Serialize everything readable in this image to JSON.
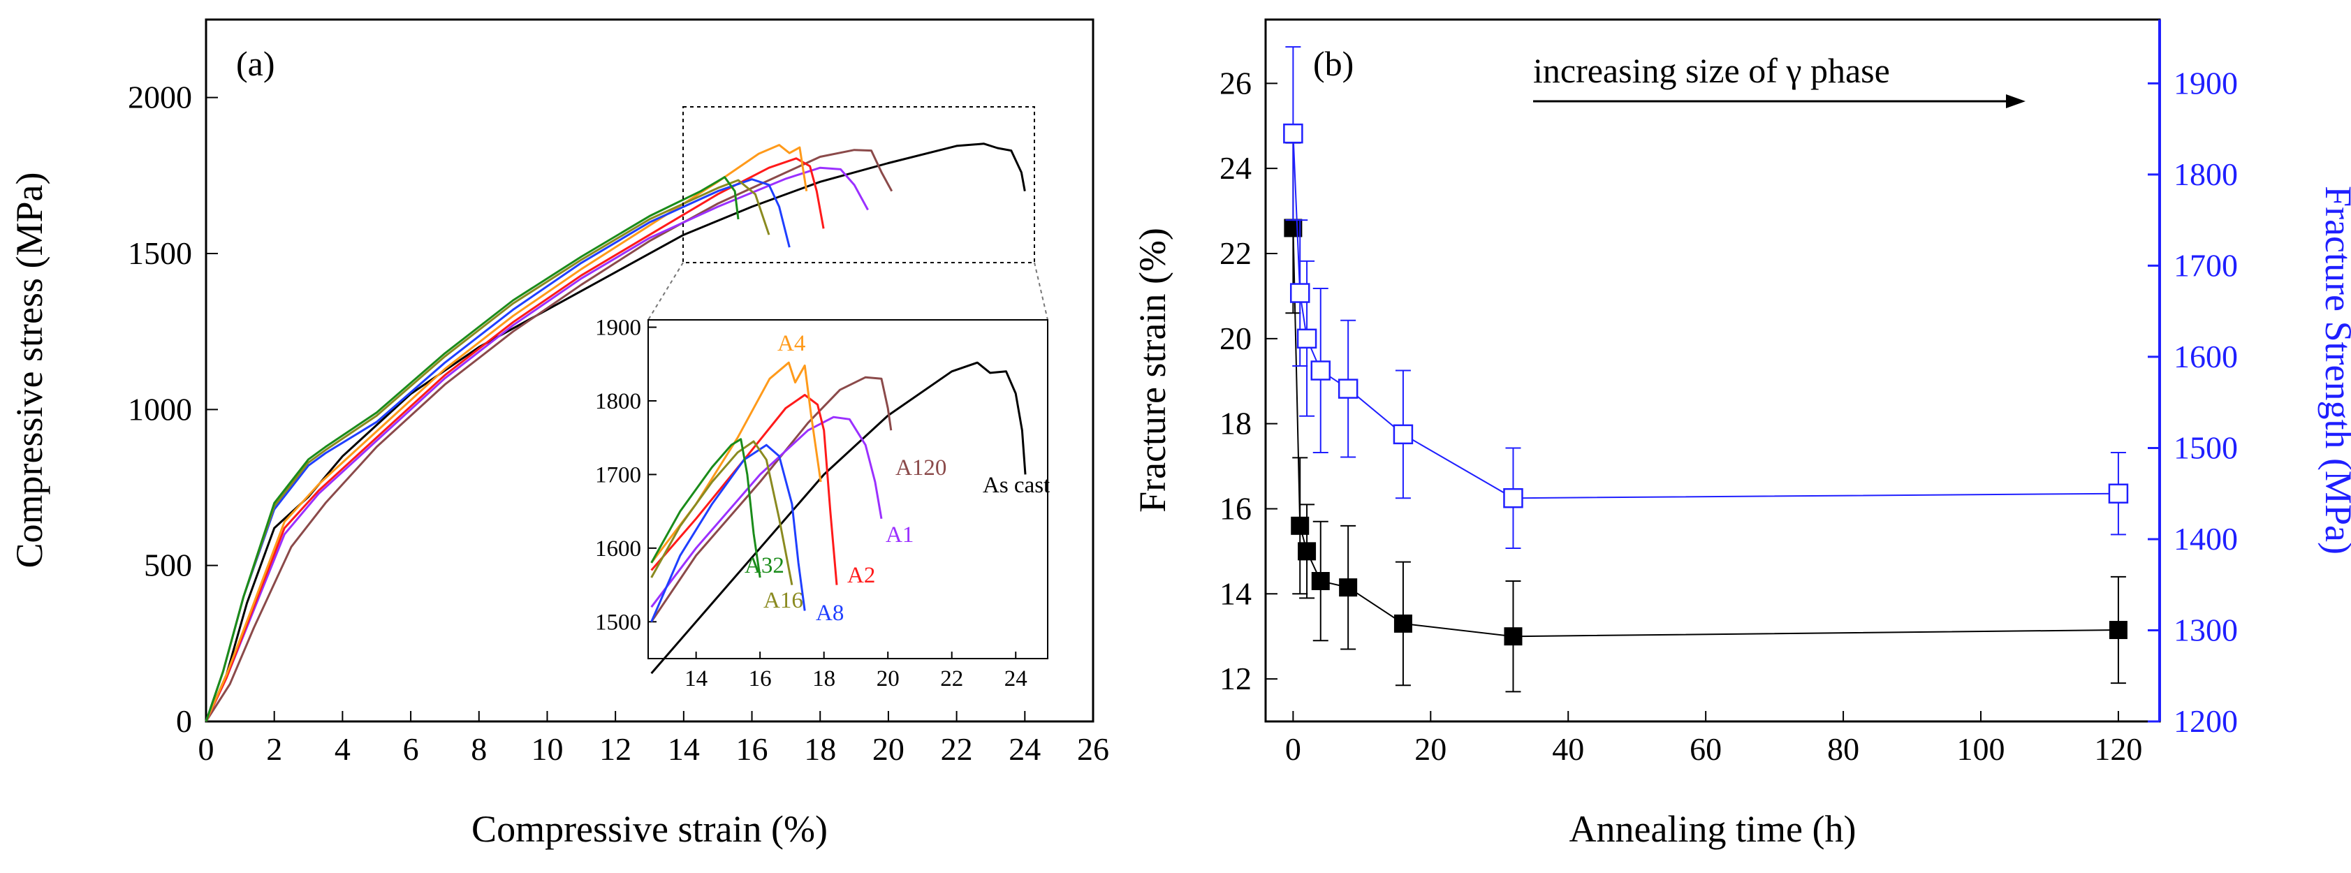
{
  "figure": {
    "colors": {
      "A1": "#9b30ff",
      "A2": "#ff1a1a",
      "A4": "#ff9a1a",
      "A8": "#1f3fff",
      "A16": "#8a8a20",
      "A32": "#1a8c1a",
      "A120": "#8b4a4a",
      "As cast": "#000000",
      "blue_axis": "#1f1fff"
    }
  },
  "chart_data": [
    {
      "id": "a",
      "panel_label": "(a)",
      "type": "line",
      "title": "",
      "xlabel": "Compressive strain (%)",
      "ylabel": "Compressive stress (MPa)",
      "xlim": [
        0,
        26
      ],
      "ylim": [
        0,
        2250
      ],
      "xticks": [
        "0",
        "2",
        "4",
        "6",
        "8",
        "10",
        "12",
        "14",
        "16",
        "18",
        "20",
        "22",
        "24",
        "26"
      ],
      "yticks": [
        "0",
        "500",
        "1000",
        "1500",
        "2000"
      ],
      "series": [
        {
          "name": "As cast",
          "x": [
            0,
            0.6,
            1.2,
            2,
            3,
            4,
            6,
            8,
            10,
            12,
            14,
            16,
            18,
            20,
            22,
            22.8,
            23.2,
            23.6,
            23.9,
            24.0
          ],
          "y": [
            0,
            150,
            380,
            620,
            720,
            850,
            1050,
            1200,
            1320,
            1440,
            1560,
            1650,
            1730,
            1790,
            1845,
            1852,
            1838,
            1830,
            1760,
            1700
          ]
        },
        {
          "name": "A120",
          "x": [
            0,
            0.7,
            1.4,
            2.5,
            3.5,
            5,
            7,
            9,
            11,
            13,
            15,
            17,
            18,
            19,
            19.5,
            19.8,
            20.1
          ],
          "y": [
            0,
            120,
            300,
            560,
            700,
            880,
            1080,
            1250,
            1400,
            1540,
            1660,
            1760,
            1810,
            1832,
            1830,
            1760,
            1700
          ]
        },
        {
          "name": "A1",
          "x": [
            0,
            0.6,
            1.3,
            2.3,
            3.3,
            5,
            7,
            9,
            11,
            13,
            15,
            17,
            18,
            18.6,
            19.0,
            19.4
          ],
          "y": [
            0,
            140,
            330,
            600,
            730,
            900,
            1100,
            1270,
            1420,
            1550,
            1650,
            1740,
            1775,
            1770,
            1720,
            1640
          ]
        },
        {
          "name": "A2",
          "x": [
            0,
            0.6,
            1.3,
            2.3,
            3.3,
            5,
            7,
            9,
            11,
            13,
            15,
            16.5,
            17.3,
            17.7,
            17.9,
            18.1
          ],
          "y": [
            0,
            140,
            340,
            620,
            740,
            910,
            1110,
            1280,
            1430,
            1560,
            1690,
            1775,
            1805,
            1780,
            1700,
            1580
          ]
        },
        {
          "name": "A4",
          "x": [
            0,
            0.6,
            1.3,
            2.3,
            3.3,
            5,
            7,
            9,
            11,
            13,
            15,
            16.2,
            16.8,
            17.1,
            17.4,
            17.6
          ],
          "y": [
            0,
            150,
            350,
            640,
            760,
            930,
            1130,
            1300,
            1450,
            1590,
            1730,
            1820,
            1848,
            1822,
            1840,
            1700
          ]
        },
        {
          "name": "A8",
          "x": [
            0,
            0.5,
            1.1,
            2,
            3,
            3.5,
            5,
            7,
            9,
            11,
            13,
            15,
            16,
            16.5,
            16.8,
            17.1
          ],
          "y": [
            0,
            160,
            400,
            680,
            820,
            860,
            960,
            1150,
            1320,
            1470,
            1600,
            1700,
            1738,
            1720,
            1650,
            1520
          ]
        },
        {
          "name": "A16",
          "x": [
            0,
            0.5,
            1.1,
            2,
            3,
            3.5,
            5,
            7,
            9,
            11,
            13,
            15,
            15.6,
            16.1,
            16.5
          ],
          "y": [
            0,
            160,
            400,
            690,
            830,
            870,
            980,
            1170,
            1340,
            1480,
            1610,
            1710,
            1735,
            1690,
            1560
          ]
        },
        {
          "name": "A32",
          "x": [
            0,
            0.5,
            1.1,
            2,
            3,
            3.5,
            5,
            7,
            9,
            11,
            13,
            14.5,
            15.2,
            15.5,
            15.6
          ],
          "y": [
            0,
            160,
            400,
            700,
            840,
            880,
            990,
            1180,
            1350,
            1490,
            1620,
            1700,
            1745,
            1700,
            1610
          ]
        }
      ],
      "inset": {
        "xlim": [
          12.5,
          25
        ],
        "ylim": [
          1450,
          1910
        ],
        "xticks": [
          "14",
          "16",
          "18",
          "20",
          "22",
          "24"
        ],
        "yticks": [
          "1500",
          "1600",
          "1700",
          "1800",
          "1900"
        ],
        "curve_labels": [
          "A4",
          "A120",
          "As cast",
          "A1",
          "A2",
          "A8",
          "A16",
          "A32"
        ],
        "series": [
          {
            "name": "As cast",
            "x": [
              12.6,
              14,
              16,
              18,
              20,
              22,
              22.8,
              23.2,
              23.7,
              24.0,
              24.2,
              24.3
            ],
            "y": [
              1430,
              1500,
              1600,
              1700,
              1780,
              1840,
              1852,
              1838,
              1840,
              1810,
              1760,
              1700
            ]
          },
          {
            "name": "A120",
            "x": [
              12.6,
              14,
              16,
              17.5,
              18.5,
              19.3,
              19.8,
              20.0,
              20.1
            ],
            "y": [
              1500,
              1590,
              1690,
              1770,
              1815,
              1832,
              1830,
              1790,
              1760
            ]
          },
          {
            "name": "A1",
            "x": [
              12.6,
              14,
              16,
              17.5,
              18.3,
              18.8,
              19.3,
              19.6,
              19.8
            ],
            "y": [
              1520,
              1600,
              1700,
              1760,
              1778,
              1775,
              1740,
              1690,
              1640
            ]
          },
          {
            "name": "A2",
            "x": [
              12.6,
              14,
              15.5,
              16.8,
              17.4,
              17.8,
              18.0,
              18.2,
              18.4
            ],
            "y": [
              1570,
              1640,
              1720,
              1790,
              1808,
              1795,
              1760,
              1650,
              1550
            ]
          },
          {
            "name": "A4",
            "x": [
              12.6,
              14,
              15.3,
              16.3,
              16.9,
              17.1,
              17.4,
              17.6,
              17.9
            ],
            "y": [
              1580,
              1660,
              1750,
              1830,
              1852,
              1825,
              1848,
              1780,
              1690
            ]
          },
          {
            "name": "A8",
            "x": [
              12.6,
              13.5,
              14.5,
              15.5,
              16.2,
              16.6,
              17.0,
              17.2,
              17.4
            ],
            "y": [
              1500,
              1590,
              1660,
              1720,
              1740,
              1725,
              1660,
              1580,
              1515
            ]
          },
          {
            "name": "A16",
            "x": [
              12.6,
              13.5,
              14.5,
              15.3,
              15.8,
              16.2,
              16.6,
              17.0
            ],
            "y": [
              1560,
              1630,
              1690,
              1730,
              1745,
              1720,
              1640,
              1550
            ]
          },
          {
            "name": "A32",
            "x": [
              12.6,
              13.5,
              14.5,
              15.1,
              15.4,
              15.6,
              15.8,
              16.0
            ],
            "y": [
              1580,
              1650,
              1710,
              1740,
              1748,
              1700,
              1620,
              1560
            ]
          }
        ]
      }
    },
    {
      "id": "b",
      "panel_label": "(b)",
      "type": "scatter",
      "title": "",
      "annotation": "increasing size of γ phase",
      "xlabel": "Annealing time (h)",
      "ylabel": "Fracture strain (%)",
      "ylabel_right": "Fracture Strength (MPa)",
      "xlim": [
        -4,
        126
      ],
      "ylim": [
        11,
        27.5
      ],
      "ylim_right": [
        1200,
        1970
      ],
      "xticks": [
        "0",
        "20",
        "40",
        "60",
        "80",
        "100",
        "120"
      ],
      "yticks": [
        "12",
        "14",
        "16",
        "18",
        "20",
        "22",
        "24",
        "26"
      ],
      "yticks_right": [
        "1200",
        "1300",
        "1400",
        "1500",
        "1600",
        "1700",
        "1800",
        "1900"
      ],
      "series": [
        {
          "name": "Fracture strain",
          "axis": "left",
          "marker": "filled-square",
          "color": "#000000",
          "x": [
            0,
            1,
            2,
            4,
            8,
            16,
            32,
            120
          ],
          "y": [
            22.6,
            15.6,
            15.0,
            14.3,
            14.15,
            13.3,
            13.0,
            13.15
          ],
          "err": [
            2.0,
            1.6,
            1.1,
            1.4,
            1.45,
            1.45,
            1.3,
            1.25
          ]
        },
        {
          "name": "Fracture strength",
          "axis": "right",
          "marker": "open-square",
          "color": "#1f1fff",
          "x": [
            0,
            1,
            2,
            4,
            8,
            16,
            32,
            120
          ],
          "y": [
            1845,
            1670,
            1620,
            1585,
            1565,
            1515,
            1445,
            1450
          ],
          "err": [
            95,
            80,
            85,
            90,
            75,
            70,
            55,
            45
          ]
        }
      ]
    }
  ]
}
